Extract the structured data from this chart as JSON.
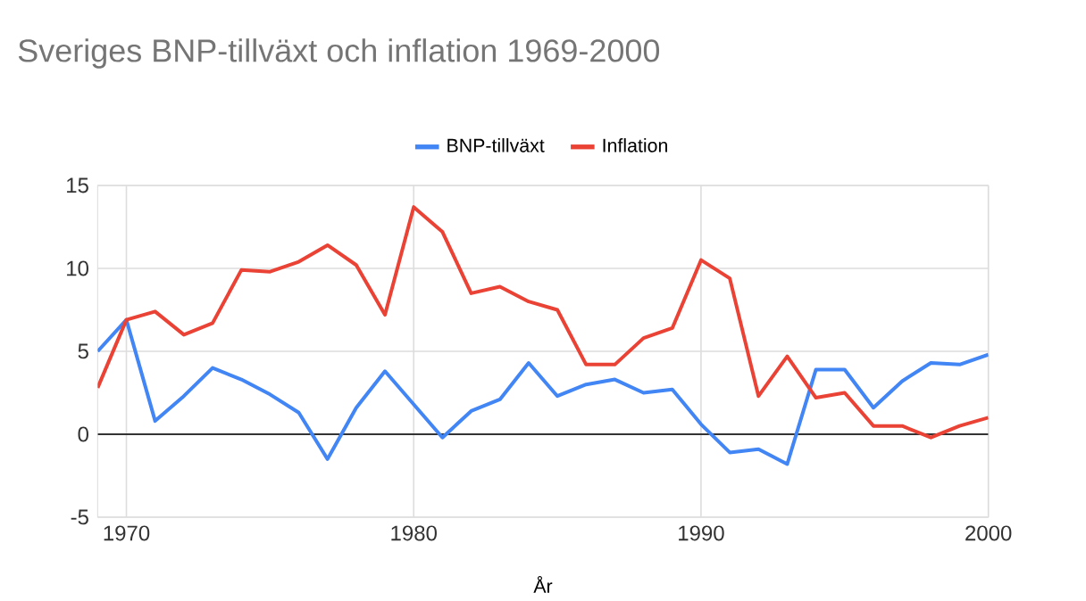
{
  "chart_data": {
    "type": "line",
    "title": "Sveriges BNP-tillväxt och inflation 1969-2000",
    "xlabel": "År",
    "x": [
      1969,
      1970,
      1971,
      1972,
      1973,
      1974,
      1975,
      1976,
      1977,
      1978,
      1979,
      1980,
      1981,
      1982,
      1983,
      1984,
      1985,
      1986,
      1987,
      1988,
      1989,
      1990,
      1991,
      1992,
      1993,
      1994,
      1995,
      1996,
      1997,
      1998,
      1999,
      2000
    ],
    "series": [
      {
        "name": "BNP-tillväxt",
        "color": "#4285f4",
        "values": [
          5.0,
          6.9,
          0.8,
          2.3,
          4.0,
          3.3,
          2.4,
          1.3,
          -1.5,
          1.6,
          3.8,
          1.8,
          -0.2,
          1.4,
          2.1,
          4.3,
          2.3,
          3.0,
          3.3,
          2.5,
          2.7,
          0.6,
          -1.1,
          -0.9,
          -1.8,
          3.9,
          3.9,
          1.6,
          3.2,
          4.3,
          4.2,
          4.8
        ]
      },
      {
        "name": "Inflation",
        "color": "#ea4335",
        "values": [
          2.8,
          6.9,
          7.4,
          6.0,
          6.7,
          9.9,
          9.8,
          10.4,
          11.4,
          10.2,
          7.2,
          13.7,
          12.2,
          8.5,
          8.9,
          8.0,
          7.5,
          4.2,
          4.2,
          5.8,
          6.4,
          10.5,
          9.4,
          2.3,
          4.7,
          2.2,
          2.5,
          0.5,
          0.5,
          -0.2,
          0.5,
          1.0
        ]
      }
    ],
    "xlim": [
      1969,
      2000
    ],
    "xticks": [
      1970,
      1980,
      1990,
      2000
    ],
    "ylim": [
      -5,
      15
    ],
    "yticks": [
      -5,
      0,
      5,
      10,
      15
    ],
    "ref_lines": [
      {
        "axis": "y",
        "value": 0,
        "color": "#333333"
      }
    ],
    "grid": true,
    "legend": "top",
    "marker": "none",
    "line_style": "solid"
  }
}
